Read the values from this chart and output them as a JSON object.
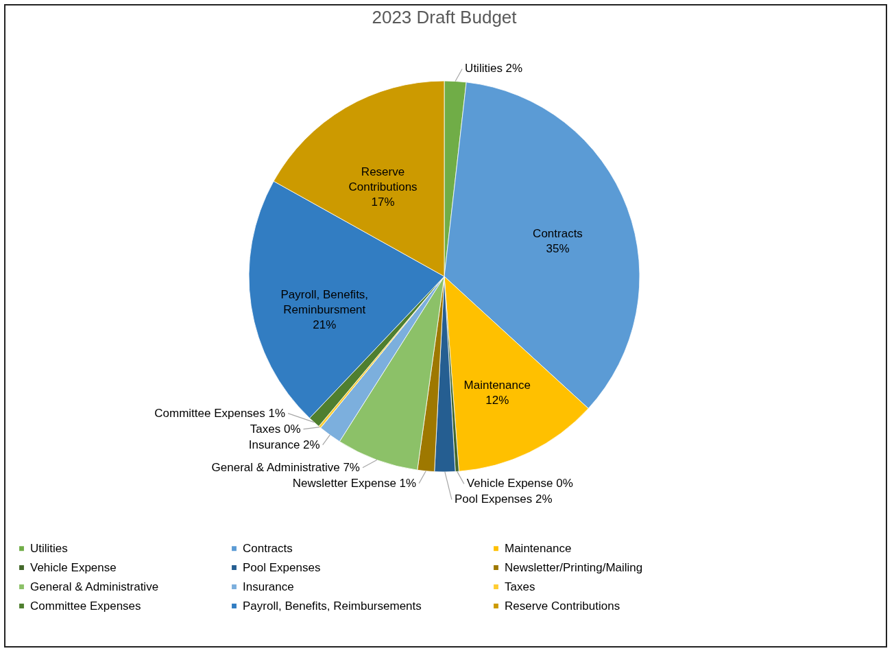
{
  "chart_data": {
    "type": "pie",
    "title": "2023 Draft Budget",
    "categories": [
      "Utilities",
      "Contracts",
      "Maintenance",
      "Vehicle Expense",
      "Pool Expenses",
      "Newsletter/Printing/Mailing",
      "General & Administrative",
      "Insurance",
      "Taxes",
      "Committee Expenses",
      "Payroll, Benefits, Reimbursements",
      "Reserve Contributions"
    ],
    "values": [
      1.8,
      35,
      12,
      0.3,
      1.7,
      1.4,
      6.8,
      1.9,
      0.2,
      1.0,
      21,
      16.9
    ],
    "colors": [
      "#70ad47",
      "#5b9bd5",
      "#ffc000",
      "#43682b",
      "#255e91",
      "#9e7800",
      "#8cc168",
      "#7cafdd",
      "#ffcd33",
      "#4f7f2f",
      "#327dc2",
      "#cc9a00"
    ],
    "value_labels": [
      "2%",
      "35%",
      "12%",
      "0%",
      "2%",
      "1%",
      "7%",
      "2%",
      "0%",
      "1%",
      "21%",
      "17%"
    ],
    "annotations": [
      "Utilities",
      "Contracts",
      "Maintenance",
      "Vehicle Expense",
      "Pool Expenses",
      "Newsletter Expense",
      "General & Administrative",
      "Insurance",
      "Taxes",
      "Committee Expenses",
      "Payroll, Benefits, Reminbursment",
      "Reserve Contributions"
    ],
    "legend": "bottom"
  }
}
